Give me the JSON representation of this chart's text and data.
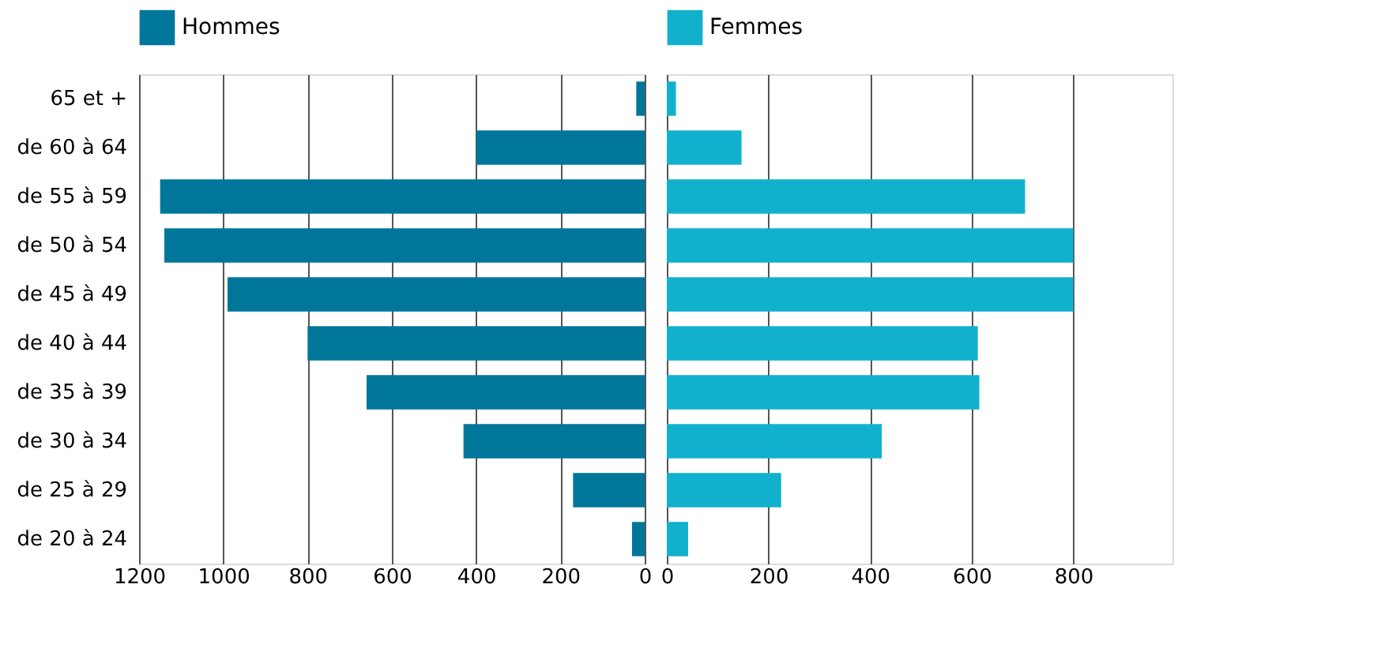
{
  "chart_data": [
    {
      "type": "bar",
      "orientation": "horizontal",
      "categories": [
        "65 et +",
        "de 60 à  64",
        "de 55 à 59",
        "de 50 à 54",
        "de 45 à 49",
        "de 40 à 44",
        "de 35 à 39",
        "de 30 à 34",
        "de 25 à 29",
        "de 20 à 24"
      ],
      "series": [
        {
          "name": "Hommes",
          "color": "#00779a",
          "values": [
            20,
            400,
            1150,
            1140,
            990,
            800,
            660,
            430,
            170,
            30
          ]
        }
      ],
      "xlim": [
        1200,
        0
      ],
      "xticks": [
        1200,
        1000,
        800,
        600,
        400,
        200,
        0
      ],
      "grid": "x",
      "legend": "top"
    },
    {
      "type": "bar",
      "orientation": "horizontal",
      "categories": [
        null,
        null,
        null,
        null,
        null,
        null,
        null,
        null,
        null,
        null
      ],
      "series": [
        {
          "name": "Femmes",
          "color": "#11b1cd",
          "values": [
            18,
            147,
            705,
            800,
            800,
            612,
            615,
            423,
            225,
            42
          ]
        }
      ],
      "xlim": [
        0,
        995
      ],
      "xticks": [
        0,
        200,
        400,
        600,
        800
      ],
      "grid": "x",
      "legend": "top",
      "tick_labels": "x"
    }
  ]
}
